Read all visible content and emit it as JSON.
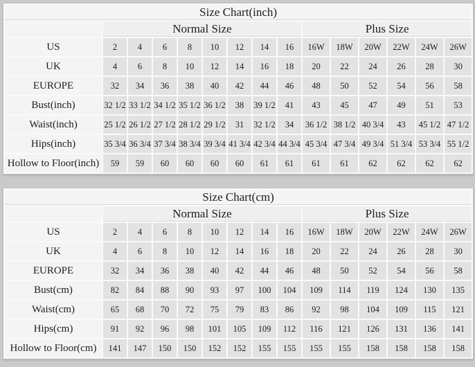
{
  "chart_data": [
    {
      "type": "table",
      "title": "Size Chart(inch)",
      "group_headers": {
        "normal": "Normal Size",
        "plus": "Plus Size"
      },
      "normal_col_count": 8,
      "plus_col_count": 6,
      "rows": [
        {
          "label": "US",
          "values": [
            "2",
            "4",
            "6",
            "8",
            "10",
            "12",
            "14",
            "16",
            "16W",
            "18W",
            "20W",
            "22W",
            "24W",
            "26W"
          ]
        },
        {
          "label": "UK",
          "values": [
            "4",
            "6",
            "8",
            "10",
            "12",
            "14",
            "16",
            "18",
            "20",
            "22",
            "24",
            "26",
            "28",
            "30"
          ]
        },
        {
          "label": "EUROPE",
          "values": [
            "32",
            "34",
            "36",
            "38",
            "40",
            "42",
            "44",
            "46",
            "48",
            "50",
            "52",
            "54",
            "56",
            "58"
          ]
        },
        {
          "label": "Bust(inch)",
          "values": [
            "32 1/2",
            "33 1/2",
            "34 1/2",
            "35 1/2",
            "36 1/2",
            "38",
            "39 1/2",
            "41",
            "43",
            "45",
            "47",
            "49",
            "51",
            "53"
          ]
        },
        {
          "label": "Waist(inch)",
          "values": [
            "25 1/2",
            "26 1/2",
            "27 1/2",
            "28 1/2",
            "29 1/2",
            "31",
            "32 1/2",
            "34",
            "36 1/2",
            "38 1/2",
            "40 3/4",
            "43",
            "45 1/2",
            "47 1/2"
          ]
        },
        {
          "label": "Hips(inch)",
          "values": [
            "35 3/4",
            "36 3/4",
            "37 3/4",
            "38 3/4",
            "39 3/4",
            "41 3/4",
            "42 3/4",
            "44 3/4",
            "45 3/4",
            "47 3/4",
            "49 3/4",
            "51 3/4",
            "53 3/4",
            "55 1/2"
          ]
        },
        {
          "label": "Hollow to Floor(inch)",
          "values": [
            "59",
            "59",
            "60",
            "60",
            "60",
            "60",
            "61",
            "61",
            "61",
            "61",
            "62",
            "62",
            "62",
            "62"
          ]
        }
      ]
    },
    {
      "type": "table",
      "title": "Size Chart(cm)",
      "group_headers": {
        "normal": "Normal Size",
        "plus": "Plus Size"
      },
      "normal_col_count": 8,
      "plus_col_count": 6,
      "rows": [
        {
          "label": "US",
          "values": [
            "2",
            "4",
            "6",
            "8",
            "10",
            "12",
            "14",
            "16",
            "16W",
            "18W",
            "20W",
            "22W",
            "24W",
            "26W"
          ]
        },
        {
          "label": "UK",
          "values": [
            "4",
            "6",
            "8",
            "10",
            "12",
            "14",
            "16",
            "18",
            "20",
            "22",
            "24",
            "26",
            "28",
            "30"
          ]
        },
        {
          "label": "EUROPE",
          "values": [
            "32",
            "34",
            "36",
            "38",
            "40",
            "42",
            "44",
            "46",
            "48",
            "50",
            "52",
            "54",
            "56",
            "58"
          ]
        },
        {
          "label": "Bust(cm)",
          "values": [
            "82",
            "84",
            "88",
            "90",
            "93",
            "97",
            "100",
            "104",
            "109",
            "114",
            "119",
            "124",
            "130",
            "135"
          ]
        },
        {
          "label": "Waist(cm)",
          "values": [
            "65",
            "68",
            "70",
            "72",
            "75",
            "79",
            "83",
            "86",
            "92",
            "98",
            "104",
            "109",
            "115",
            "121"
          ]
        },
        {
          "label": "Hips(cm)",
          "values": [
            "91",
            "92",
            "96",
            "98",
            "101",
            "105",
            "109",
            "112",
            "116",
            "121",
            "126",
            "131",
            "136",
            "141"
          ]
        },
        {
          "label": "Hollow to Floor(cm)",
          "values": [
            "141",
            "147",
            "150",
            "150",
            "152",
            "152",
            "155",
            "155",
            "155",
            "155",
            "158",
            "158",
            "158",
            "158"
          ]
        }
      ]
    }
  ],
  "style": {
    "background_color": "#cacaca",
    "label_cell_color": "#f4f4f4",
    "data_cell_color": "#e2e2e2",
    "grid_line_color": "#fafafa"
  }
}
